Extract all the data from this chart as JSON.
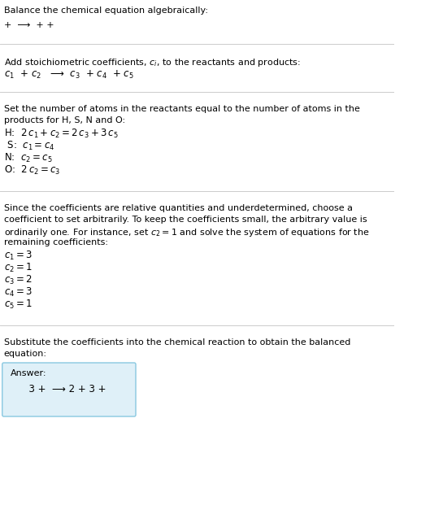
{
  "title": "Balance the chemical equation algebraically:",
  "line1": "+  ⟶  + +",
  "section1_title": "Add stoichiometric coefficients, $c_i$, to the reactants and products:",
  "section1_eq": "$c_1$  + $c_2$   ⟶  $c_3$  + $c_4$  + $c_5$",
  "section2_title": "Set the number of atoms in the reactants equal to the number of atoms in the\nproducts for H, S, N and O:",
  "section2_lines": [
    "H:  $2\\,c_1 + c_2 = 2\\,c_3 + 3\\,c_5$",
    " S:  $c_1 = c_4$",
    "N:  $c_2 = c_5$",
    "O:  $2\\,c_2 = c_3$"
  ],
  "section3_title": "Since the coefficients are relative quantities and underdetermined, choose a\ncoefficient to set arbitrarily. To keep the coefficients small, the arbitrary value is\nordinarily one. For instance, set $c_2 = 1$ and solve the system of equations for the\nremaining coefficients:",
  "section3_lines": [
    "$c_1 = 3$",
    "$c_2 = 1$",
    "$c_3 = 2$",
    "$c_4 = 3$",
    "$c_5 = 1$"
  ],
  "section4_title": "Substitute the coefficients into the chemical reaction to obtain the balanced\nequation:",
  "answer_label": "Answer:",
  "answer_eq": "      3 +  ⟶ 2 + 3 + ",
  "bg_color": "#ffffff",
  "text_color": "#000000",
  "line_color": "#cccccc",
  "box_color": "#dff0f8",
  "box_border": "#88c8e0",
  "font_size": 8.0,
  "eq_font_size": 8.5
}
